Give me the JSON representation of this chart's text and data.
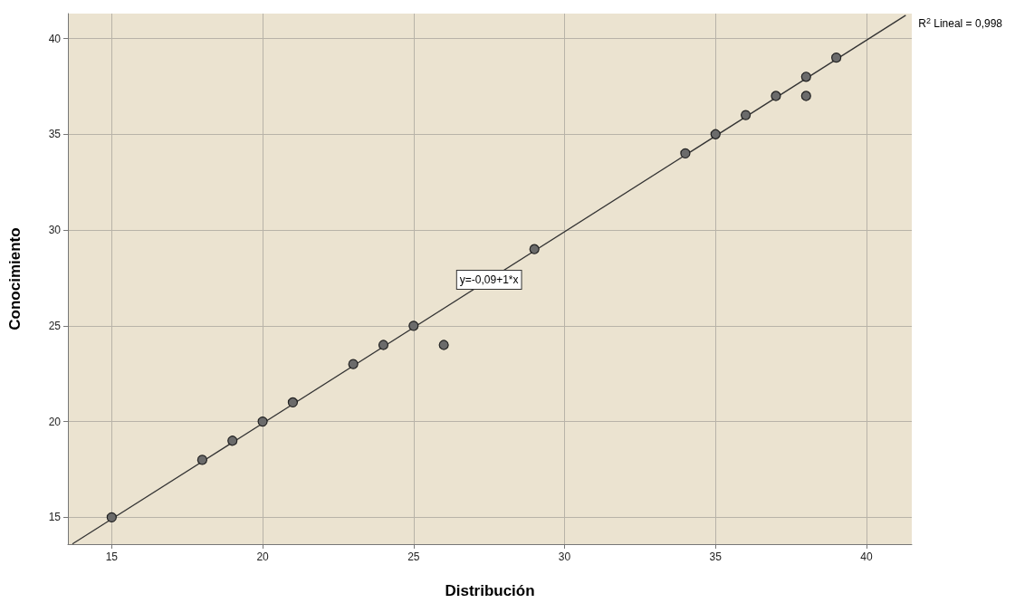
{
  "chart_data": {
    "type": "scatter",
    "xlabel": "Distribución",
    "ylabel": "Conocimiento",
    "xlim": [
      13.55,
      41.5
    ],
    "ylim": [
      13.6,
      41.3
    ],
    "xticks": [
      15,
      20,
      25,
      30,
      35,
      40
    ],
    "yticks": [
      15,
      20,
      25,
      30,
      35,
      40
    ],
    "grid": true,
    "series": [
      {
        "marker": "circle",
        "color": "#6b6b6b",
        "x": [
          15,
          18,
          19,
          20,
          21,
          23,
          24,
          25,
          26,
          29,
          34,
          35,
          36,
          37,
          38,
          38,
          39
        ],
        "values": [
          15,
          18,
          19,
          20,
          21,
          23,
          24,
          25,
          24,
          29,
          34,
          35,
          36,
          37,
          38,
          37,
          39
        ]
      },
      {
        "type": "line",
        "color": "#333333",
        "x": [
          13.7,
          41.3
        ],
        "values": [
          13.61,
          41.21
        ]
      }
    ],
    "annotations": [
      {
        "text": "y=-0,09+1*x",
        "x": 27.5,
        "y": 27.4
      },
      "R$^{2}$ Lineal = 0,998"
    ]
  }
}
